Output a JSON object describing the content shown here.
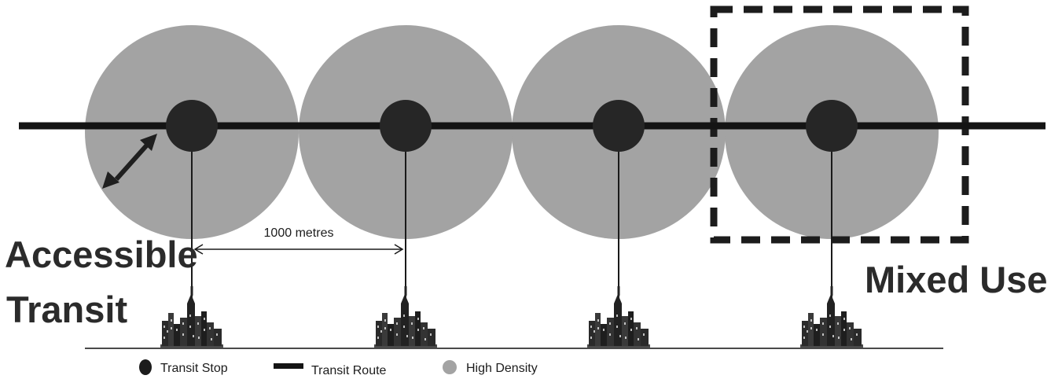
{
  "colors": {
    "density": "#a3a3a3",
    "stop": "#262626",
    "route": "#141414",
    "text": "#2b2b2b",
    "ground": "#4a4a4a"
  },
  "labels": {
    "accessible_line1": "Accessible",
    "accessible_line2": "Transit",
    "mixed_use": "Mixed Use",
    "distance": "1000 metres"
  },
  "legend": {
    "transit_stop": "Transit Stop",
    "transit_route": "Transit Route",
    "high_density": "High Density"
  },
  "stops_count": 4,
  "icons": [
    "city-skyline-icon",
    "double-arrow-icon",
    "dashed-box"
  ]
}
